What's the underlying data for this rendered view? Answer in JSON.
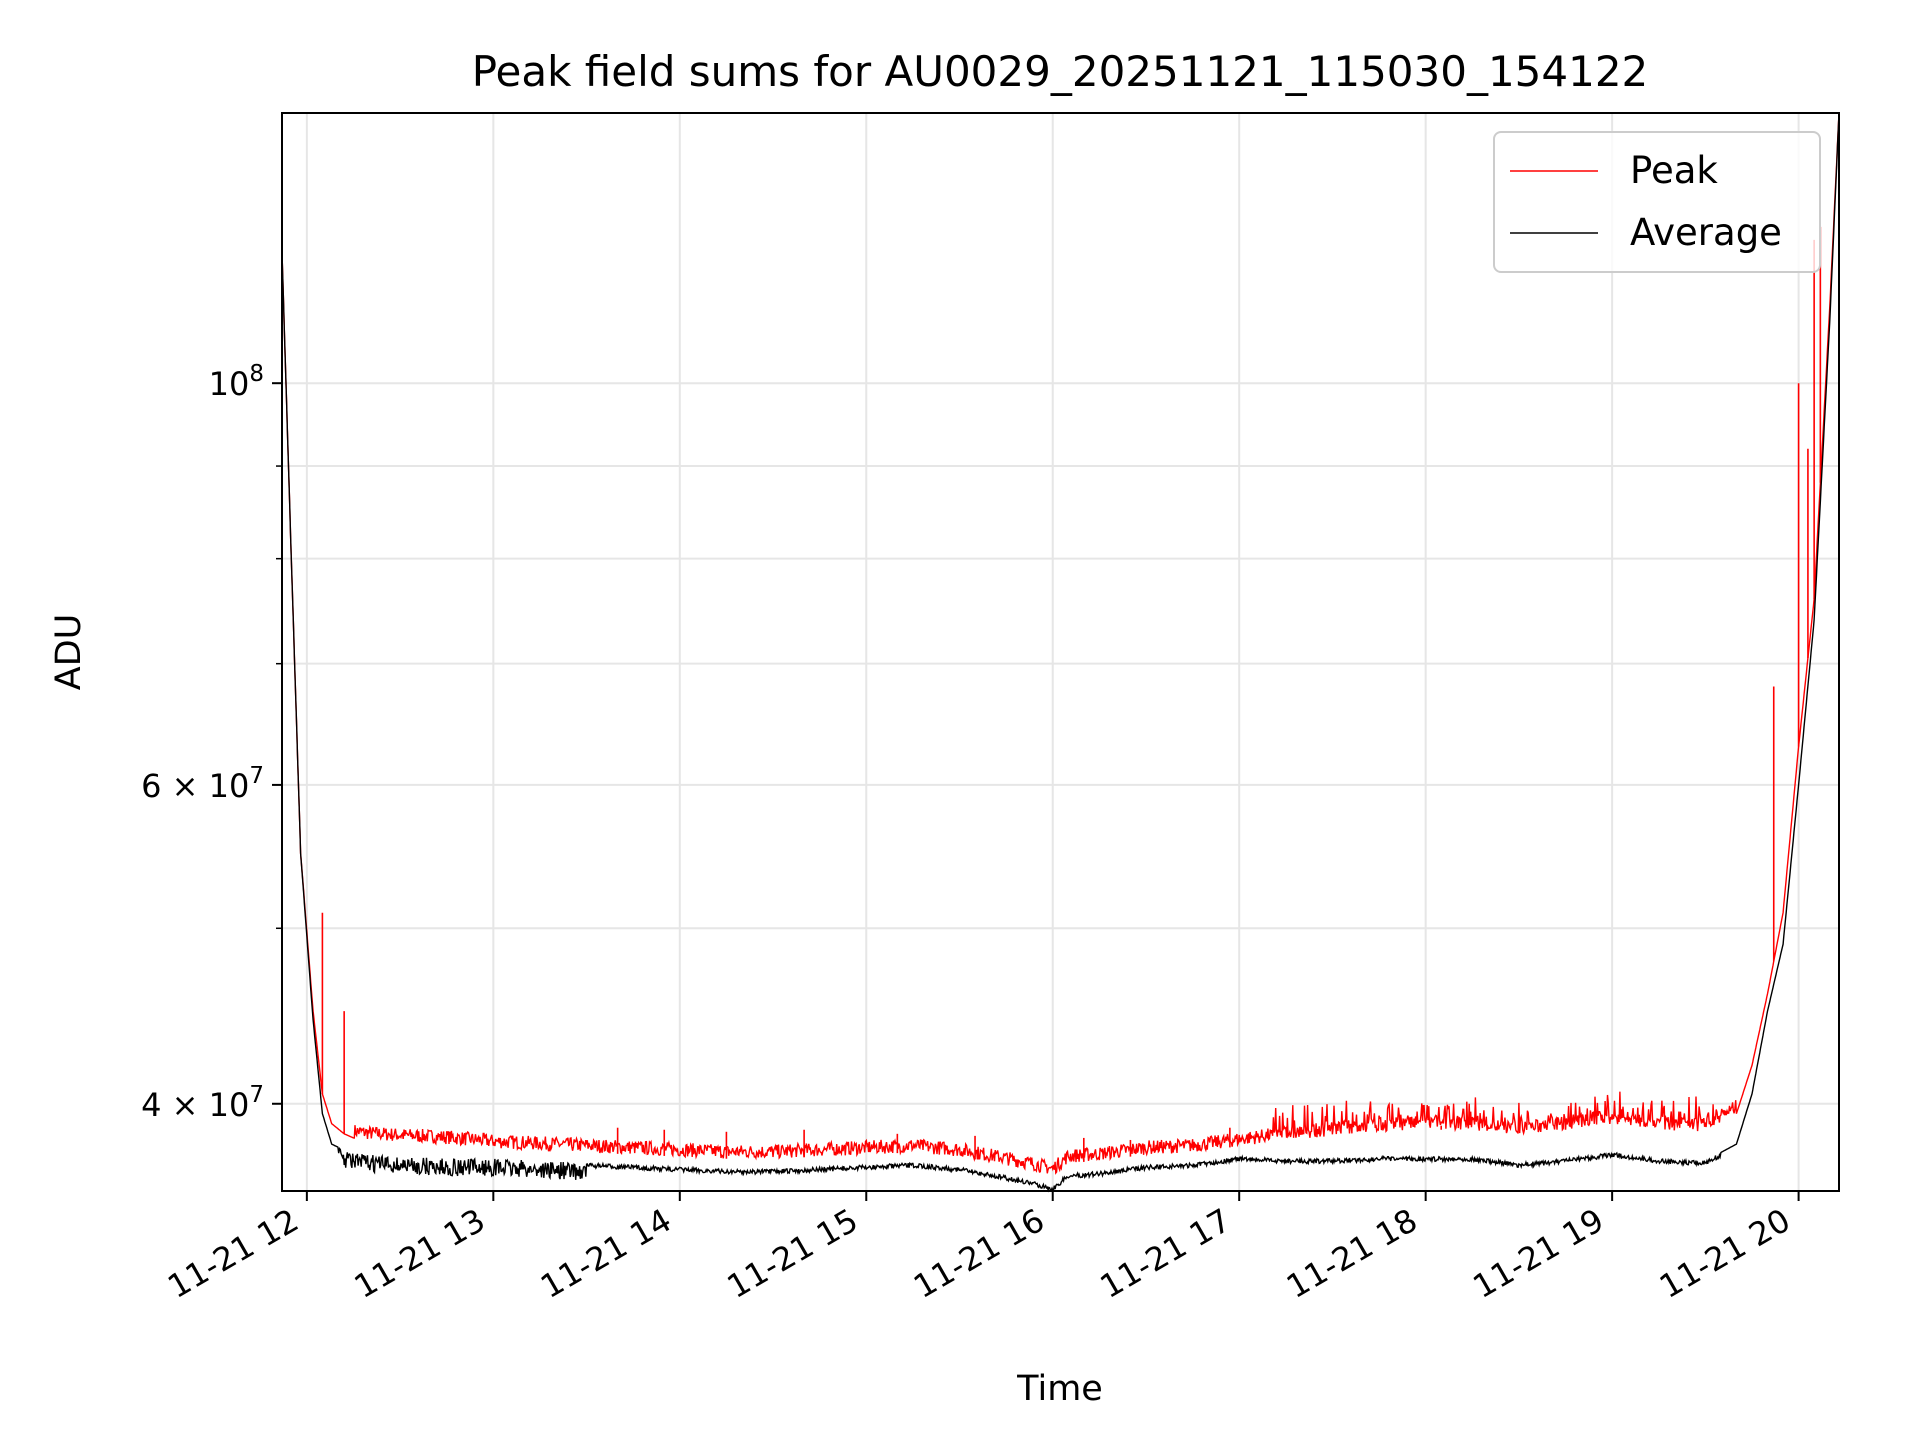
{
  "colors": {
    "peak": "#ff0000",
    "average": "#000000",
    "grid": "#e6e6e6",
    "background": "#ffffff",
    "legend_border": "#cccccc"
  },
  "chart_data": {
    "type": "line",
    "title": "Peak field sums for AU0029_20251121_115030_154122",
    "xlabel": "Time",
    "ylabel": "ADU",
    "y_scale": "log",
    "xlim": [
      "2025-11-21 11:52",
      "2025-11-21 20:13"
    ],
    "ylim": [
      35800000,
      141000000
    ],
    "grid": true,
    "legend_position": "upper right",
    "x_tick_labels": [
      "11-21 12",
      "11-21 13",
      "11-21 14",
      "11-21 15",
      "11-21 16",
      "11-21 17",
      "11-21 18",
      "11-21 19",
      "11-21 20"
    ],
    "y_major_tick_labels": [
      "10^8",
      "6 × 10^7",
      "4 × 10^7"
    ],
    "y_major_tick_values": [
      100000000,
      60000000,
      40000000
    ],
    "y_minor_tick_values": [
      50000000,
      70000000,
      80000000,
      90000000
    ],
    "series": [
      {
        "name": "Peak",
        "color": "#ff0000",
        "x": [
          "11:52",
          "11:55",
          "11:58",
          "12:02",
          "12:05",
          "12:08",
          "12:12",
          "12:15",
          "12:20",
          "12:30",
          "12:45",
          "13:00",
          "13:15",
          "13:30",
          "13:45",
          "14:00",
          "14:15",
          "14:30",
          "14:45",
          "15:00",
          "15:15",
          "15:30",
          "15:45",
          "15:55",
          "16:00",
          "16:05",
          "16:15",
          "16:30",
          "16:45",
          "17:00",
          "17:15",
          "17:30",
          "17:45",
          "18:00",
          "18:15",
          "18:30",
          "18:45",
          "19:00",
          "19:15",
          "19:30",
          "19:40",
          "19:45",
          "19:50",
          "19:55",
          "20:00",
          "20:05",
          "20:10",
          "20:13"
        ],
        "y": [
          118000000,
          80000000,
          55000000,
          45000000,
          40500000,
          39000000,
          38500000,
          38300000,
          38200000,
          38100000,
          38000000,
          37800000,
          37700000,
          37600000,
          37500000,
          37400000,
          37300000,
          37300000,
          37400000,
          37500000,
          37600000,
          37400000,
          37000000,
          36700000,
          36500000,
          37100000,
          37200000,
          37500000,
          37600000,
          37900000,
          38200000,
          38400000,
          38600000,
          38700000,
          38700000,
          38400000,
          38700000,
          39000000,
          38700000,
          38600000,
          39500000,
          42000000,
          46000000,
          51000000,
          63000000,
          76000000,
          110000000,
          141000000
        ],
        "spikes": [
          {
            "x": "19:52",
            "y": 68000000
          },
          {
            "x": "20:00",
            "y": 100000000
          },
          {
            "x": "20:03",
            "y": 92000000
          },
          {
            "x": "20:05",
            "y": 120000000
          },
          {
            "x": "20:07",
            "y": 122000000
          },
          {
            "x": "12:05",
            "y": 51000000
          },
          {
            "x": "12:12",
            "y": 45000000
          },
          {
            "x": "13:40",
            "y": 38800000
          },
          {
            "x": "13:55",
            "y": 38700000
          },
          {
            "x": "14:15",
            "y": 38600000
          },
          {
            "x": "14:40",
            "y": 38700000
          },
          {
            "x": "15:10",
            "y": 38500000
          },
          {
            "x": "15:35",
            "y": 38400000
          },
          {
            "x": "16:10",
            "y": 38300000
          },
          {
            "x": "16:25",
            "y": 38200000
          },
          {
            "x": "16:57",
            "y": 38800000
          },
          {
            "x": "17:25",
            "y": 38700000
          },
          {
            "x": "18:05",
            "y": 38900000
          },
          {
            "x": "18:45",
            "y": 39000000
          },
          {
            "x": "19:20",
            "y": 39100000
          }
        ]
      },
      {
        "name": "Average",
        "color": "#000000",
        "x": [
          "11:52",
          "11:55",
          "11:58",
          "12:02",
          "12:05",
          "12:08",
          "12:12",
          "12:15",
          "12:20",
          "12:30",
          "12:45",
          "13:00",
          "13:15",
          "13:30",
          "13:45",
          "14:00",
          "14:15",
          "14:30",
          "14:45",
          "15:00",
          "15:15",
          "15:30",
          "15:45",
          "15:55",
          "16:00",
          "16:05",
          "16:15",
          "16:30",
          "16:45",
          "17:00",
          "17:15",
          "17:30",
          "17:45",
          "18:00",
          "18:15",
          "18:30",
          "18:45",
          "19:00",
          "19:15",
          "19:30",
          "19:40",
          "19:45",
          "19:50",
          "19:55",
          "20:00",
          "20:05",
          "20:10",
          "20:13"
        ],
        "y": [
          118000000,
          80000000,
          55000000,
          44500000,
          39500000,
          38000000,
          37700000,
          37600000,
          37500000,
          37400000,
          37300000,
          37300000,
          37200000,
          37100000,
          37000000,
          36900000,
          36800000,
          36800000,
          36900000,
          37000000,
          37100000,
          36900000,
          36500000,
          36200000,
          36000000,
          36600000,
          36700000,
          37000000,
          37100000,
          37400000,
          37300000,
          37300000,
          37400000,
          37400000,
          37400000,
          37100000,
          37300000,
          37600000,
          37300000,
          37200000,
          38000000,
          40500000,
          45000000,
          49000000,
          60000000,
          74000000,
          108000000,
          141000000
        ]
      }
    ],
    "legend": [
      "Peak",
      "Average"
    ]
  }
}
